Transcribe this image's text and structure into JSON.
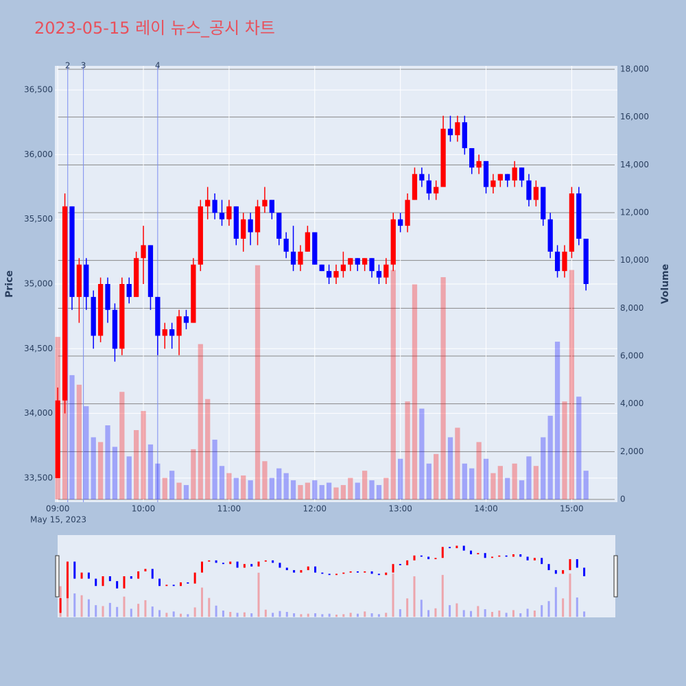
{
  "chart_data": {
    "type": "candlestick",
    "title": "2023-05-15 레이 뉴스_공시 차트",
    "x_date_label": "May 15, 2023",
    "y_title": "Price",
    "y2_title": "Volume",
    "up_color": "#ff0000",
    "down_color": "#0000ff",
    "grid": true,
    "rangeslider": true,
    "x": [
      "09:00",
      "09:05",
      "09:10",
      "09:15",
      "09:20",
      "09:25",
      "09:30",
      "09:35",
      "09:40",
      "09:45",
      "09:50",
      "09:55",
      "10:00",
      "10:05",
      "10:10",
      "10:15",
      "10:20",
      "10:25",
      "10:30",
      "10:35",
      "10:40",
      "10:45",
      "10:50",
      "10:55",
      "11:00",
      "11:05",
      "11:10",
      "11:15",
      "11:20",
      "11:25",
      "11:30",
      "11:35",
      "11:40",
      "11:45",
      "11:50",
      "11:55",
      "12:00",
      "12:05",
      "12:10",
      "12:15",
      "12:20",
      "12:25",
      "12:30",
      "12:35",
      "12:40",
      "12:45",
      "12:50",
      "12:55",
      "13:00",
      "13:05",
      "13:10",
      "13:15",
      "13:20",
      "13:25",
      "13:30",
      "13:35",
      "13:40",
      "13:45",
      "13:50",
      "13:55",
      "14:00",
      "14:05",
      "14:10",
      "14:15",
      "14:20",
      "14:25",
      "14:30",
      "14:35",
      "14:40",
      "14:45",
      "14:50",
      "14:55",
      "15:00",
      "15:05",
      "15:10"
    ],
    "open": [
      33500,
      34100,
      35600,
      34900,
      35150,
      34900,
      34600,
      35000,
      34800,
      34500,
      35000,
      34900,
      35200,
      35300,
      34900,
      34600,
      34650,
      34600,
      34750,
      34700,
      35150,
      35600,
      35650,
      35550,
      35500,
      35600,
      35350,
      35500,
      35400,
      35600,
      35650,
      35550,
      35350,
      35250,
      35150,
      35250,
      35400,
      35150,
      35100,
      35050,
      35100,
      35150,
      35200,
      35150,
      35200,
      35100,
      35050,
      35150,
      35500,
      35450,
      35650,
      35850,
      35800,
      35700,
      35750,
      36200,
      36150,
      36250,
      36050,
      35900,
      35950,
      35750,
      35800,
      35850,
      35800,
      35900,
      35800,
      35650,
      35750,
      35500,
      35250,
      35100,
      35250,
      35700,
      35350
    ],
    "high": [
      34200,
      35700,
      35600,
      35200,
      35200,
      34950,
      35050,
      35050,
      34850,
      35050,
      35050,
      35250,
      35450,
      35300,
      34900,
      34700,
      34700,
      34800,
      34800,
      35200,
      35650,
      35750,
      35700,
      35650,
      35650,
      35600,
      35550,
      35550,
      35650,
      35750,
      35650,
      35550,
      35400,
      35450,
      35300,
      35450,
      35400,
      35150,
      35150,
      35150,
      35250,
      35200,
      35200,
      35200,
      35200,
      35150,
      35200,
      35550,
      35550,
      35700,
      35900,
      35900,
      35850,
      35800,
      36300,
      36300,
      36300,
      36300,
      36050,
      36000,
      35950,
      35850,
      35850,
      35850,
      35950,
      35900,
      35850,
      35800,
      35750,
      35550,
      35300,
      35300,
      35750,
      35750,
      35350
    ],
    "low": [
      33500,
      34000,
      34800,
      34700,
      34800,
      34500,
      34550,
      34700,
      34400,
      34450,
      34850,
      34900,
      35000,
      34800,
      34450,
      34500,
      34500,
      34450,
      34650,
      34700,
      35100,
      35500,
      35500,
      35450,
      35450,
      35300,
      35250,
      35300,
      35300,
      35550,
      35500,
      35300,
      35200,
      35100,
      35100,
      35250,
      35150,
      35100,
      35000,
      35000,
      35050,
      35100,
      35100,
      35100,
      35050,
      35000,
      35000,
      35100,
      35400,
      35400,
      35650,
      35750,
      35650,
      35650,
      35750,
      36100,
      36100,
      36000,
      35850,
      35850,
      35700,
      35700,
      35750,
      35750,
      35750,
      35750,
      35600,
      35600,
      35450,
      35200,
      35050,
      35050,
      35200,
      35300,
      34950
    ],
    "close": [
      34100,
      35600,
      34900,
      35150,
      34900,
      34600,
      35000,
      34800,
      34500,
      35000,
      34900,
      35200,
      35300,
      34900,
      34600,
      34650,
      34600,
      34750,
      34700,
      35150,
      35600,
      35650,
      35550,
      35500,
      35600,
      35350,
      35500,
      35400,
      35600,
      35650,
      35550,
      35350,
      35250,
      35150,
      35250,
      35400,
      35150,
      35100,
      35050,
      35100,
      35150,
      35200,
      35150,
      35200,
      35100,
      35050,
      35150,
      35500,
      35450,
      35650,
      35850,
      35800,
      35700,
      35750,
      36200,
      36150,
      36250,
      36050,
      35900,
      35950,
      35750,
      35800,
      35850,
      35800,
      35900,
      35800,
      35650,
      35750,
      35500,
      35250,
      35100,
      35250,
      35700,
      35350,
      35000
    ],
    "volume": [
      6800,
      9500,
      5200,
      4800,
      3900,
      2600,
      2400,
      3100,
      2200,
      4500,
      1800,
      2900,
      3700,
      2300,
      1500,
      900,
      1200,
      700,
      600,
      2100,
      6500,
      4200,
      2500,
      1400,
      1100,
      900,
      1000,
      800,
      9800,
      1600,
      900,
      1300,
      1100,
      800,
      600,
      700,
      800,
      600,
      700,
      500,
      600,
      900,
      700,
      1200,
      800,
      600,
      900,
      9600,
      1700,
      4100,
      9000,
      3800,
      1500,
      1900,
      9300,
      2600,
      3000,
      1500,
      1300,
      2400,
      1700,
      1100,
      1400,
      900,
      1500,
      800,
      1800,
      1400,
      2600,
      3500,
      6600,
      4100,
      9600,
      4300,
      1200
    ],
    "xlim": [
      "08:58",
      "15:32"
    ],
    "xticks": [
      "09:00",
      "10:00",
      "11:00",
      "12:00",
      "13:00",
      "14:00",
      "15:00"
    ],
    "ylim": [
      33314,
      36686
    ],
    "yticks": [
      {
        "value": 33500,
        "label": "33,500"
      },
      {
        "value": 34000,
        "label": "34,000"
      },
      {
        "value": 34500,
        "label": "34,500"
      },
      {
        "value": 35000,
        "label": "35,000"
      },
      {
        "value": 35500,
        "label": "35,500"
      },
      {
        "value": 36000,
        "label": "36,000"
      },
      {
        "value": 36500,
        "label": "36,500"
      }
    ],
    "y2lim": [
      -115,
      18144
    ],
    "y2ticks": [
      0,
      {
        "value": 2000,
        "label": "2,000"
      },
      {
        "value": 4000,
        "label": "4,000"
      },
      {
        "value": 6000,
        "label": "6,000"
      },
      {
        "value": 8000,
        "label": "8,000"
      },
      {
        "value": 10000,
        "label": "10,000"
      },
      {
        "value": 12000,
        "label": "12,000"
      },
      {
        "value": 14000,
        "label": "14,000"
      },
      {
        "value": 16000,
        "label": "16,000"
      },
      {
        "value": 18000,
        "label": "18,000"
      }
    ],
    "annotations": [
      {
        "x": "09:07",
        "label": "2"
      },
      {
        "x": "09:18",
        "label": "3"
      },
      {
        "x": "10:10",
        "label": "4"
      }
    ]
  }
}
